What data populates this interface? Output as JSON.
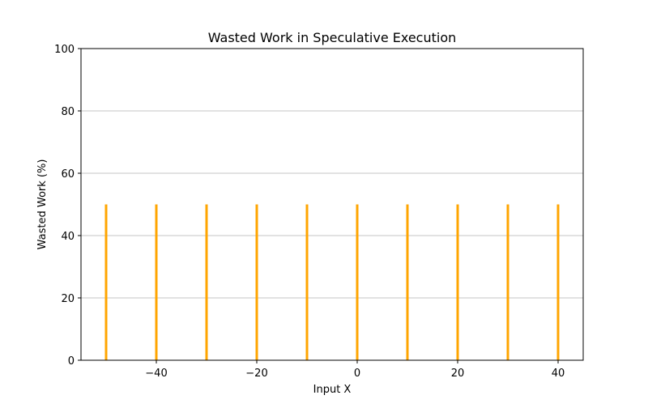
{
  "chart_data": {
    "type": "bar",
    "title": "Wasted Work in Speculative Execution",
    "xlabel": "Input X",
    "ylabel": "Wasted Work (%)",
    "xlim": [
      -55,
      45
    ],
    "ylim": [
      0,
      100
    ],
    "xticks": [
      -40,
      -20,
      0,
      20,
      40
    ],
    "xtick_labels": [
      "−40",
      "−20",
      "0",
      "20",
      "40"
    ],
    "yticks": [
      0,
      20,
      40,
      60,
      80,
      100
    ],
    "ytick_labels": [
      "0",
      "20",
      "40",
      "60",
      "80",
      "100"
    ],
    "grid": "y-major",
    "legend": "none",
    "bar_color": "#ffa500",
    "grid_color": "#b0b0b0",
    "series": [
      {
        "x": [
          -50,
          -40,
          -30,
          -20,
          -10,
          0,
          10,
          20,
          30,
          40
        ],
        "values": [
          50,
          50,
          50,
          50,
          50,
          50,
          50,
          50,
          50,
          50
        ]
      }
    ]
  }
}
